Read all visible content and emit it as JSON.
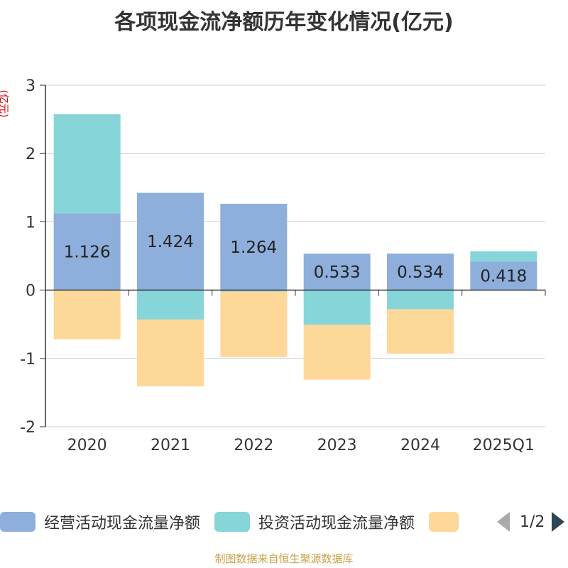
{
  "chart_data": {
    "type": "bar",
    "stacked": true,
    "title": "各项现金流净额历年变化情况(亿元)",
    "ylabel": "(亿元)",
    "categories": [
      "2020",
      "2021",
      "2022",
      "2023",
      "2024",
      "2025Q1"
    ],
    "ylim": [
      -2,
      3
    ],
    "yticks": [
      3,
      2,
      1,
      0,
      -1,
      -2
    ],
    "grid": true,
    "series": [
      {
        "name": "经营活动现金流量净额",
        "color": "#8eaedb",
        "values": [
          1.126,
          1.424,
          1.264,
          0.533,
          0.534,
          0.418
        ],
        "labels": [
          "1.126",
          "1.424",
          "1.264",
          "0.533",
          "0.534",
          "0.418"
        ]
      },
      {
        "name": "投资活动现金流量净额",
        "color": "#86d5d8",
        "values": [
          1.45,
          -0.43,
          -0.02,
          -0.51,
          -0.28,
          0.15
        ]
      },
      {
        "name": "",
        "color": "#fed898",
        "values": [
          -0.72,
          -0.98,
          -0.96,
          -0.8,
          -0.65,
          0
        ]
      }
    ]
  },
  "legend": {
    "items": [
      {
        "label": "经营活动现金流量净额",
        "color": "#8eaedb"
      },
      {
        "label": "投资活动现金流量净额",
        "color": "#86d5d8"
      },
      {
        "label": "",
        "color": "#fed898"
      }
    ],
    "page": "1/2"
  },
  "footer": {
    "source": "制图数据来自恒生聚源数据库"
  }
}
